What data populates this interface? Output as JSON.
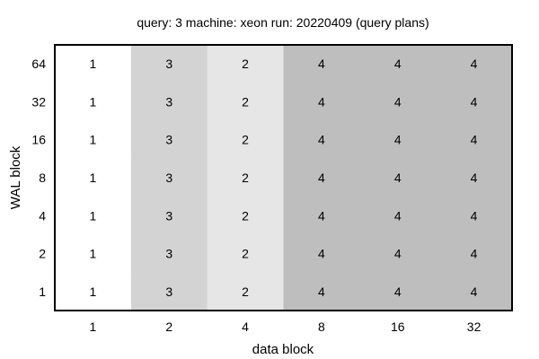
{
  "chart_data": {
    "type": "heatmap",
    "title": "query: 3  machine: xeon  run: 20220409  (query plans)",
    "xlabel": "data block",
    "ylabel": "WAL block",
    "x_categories": [
      "1",
      "2",
      "4",
      "8",
      "16",
      "32"
    ],
    "y_categories": [
      "64",
      "32",
      "16",
      "8",
      "4",
      "2",
      "1"
    ],
    "values": [
      [
        1,
        3,
        2,
        4,
        4,
        4
      ],
      [
        1,
        3,
        2,
        4,
        4,
        4
      ],
      [
        1,
        3,
        2,
        4,
        4,
        4
      ],
      [
        1,
        3,
        2,
        4,
        4,
        4
      ],
      [
        1,
        3,
        2,
        4,
        4,
        4
      ],
      [
        1,
        3,
        2,
        4,
        4,
        4
      ],
      [
        1,
        3,
        2,
        4,
        4,
        4
      ]
    ],
    "value_colors": {
      "1": "#ffffff",
      "2": "#e6e6e6",
      "3": "#d3d3d3",
      "4": "#bebebe"
    },
    "grid": false,
    "legend": "none"
  }
}
